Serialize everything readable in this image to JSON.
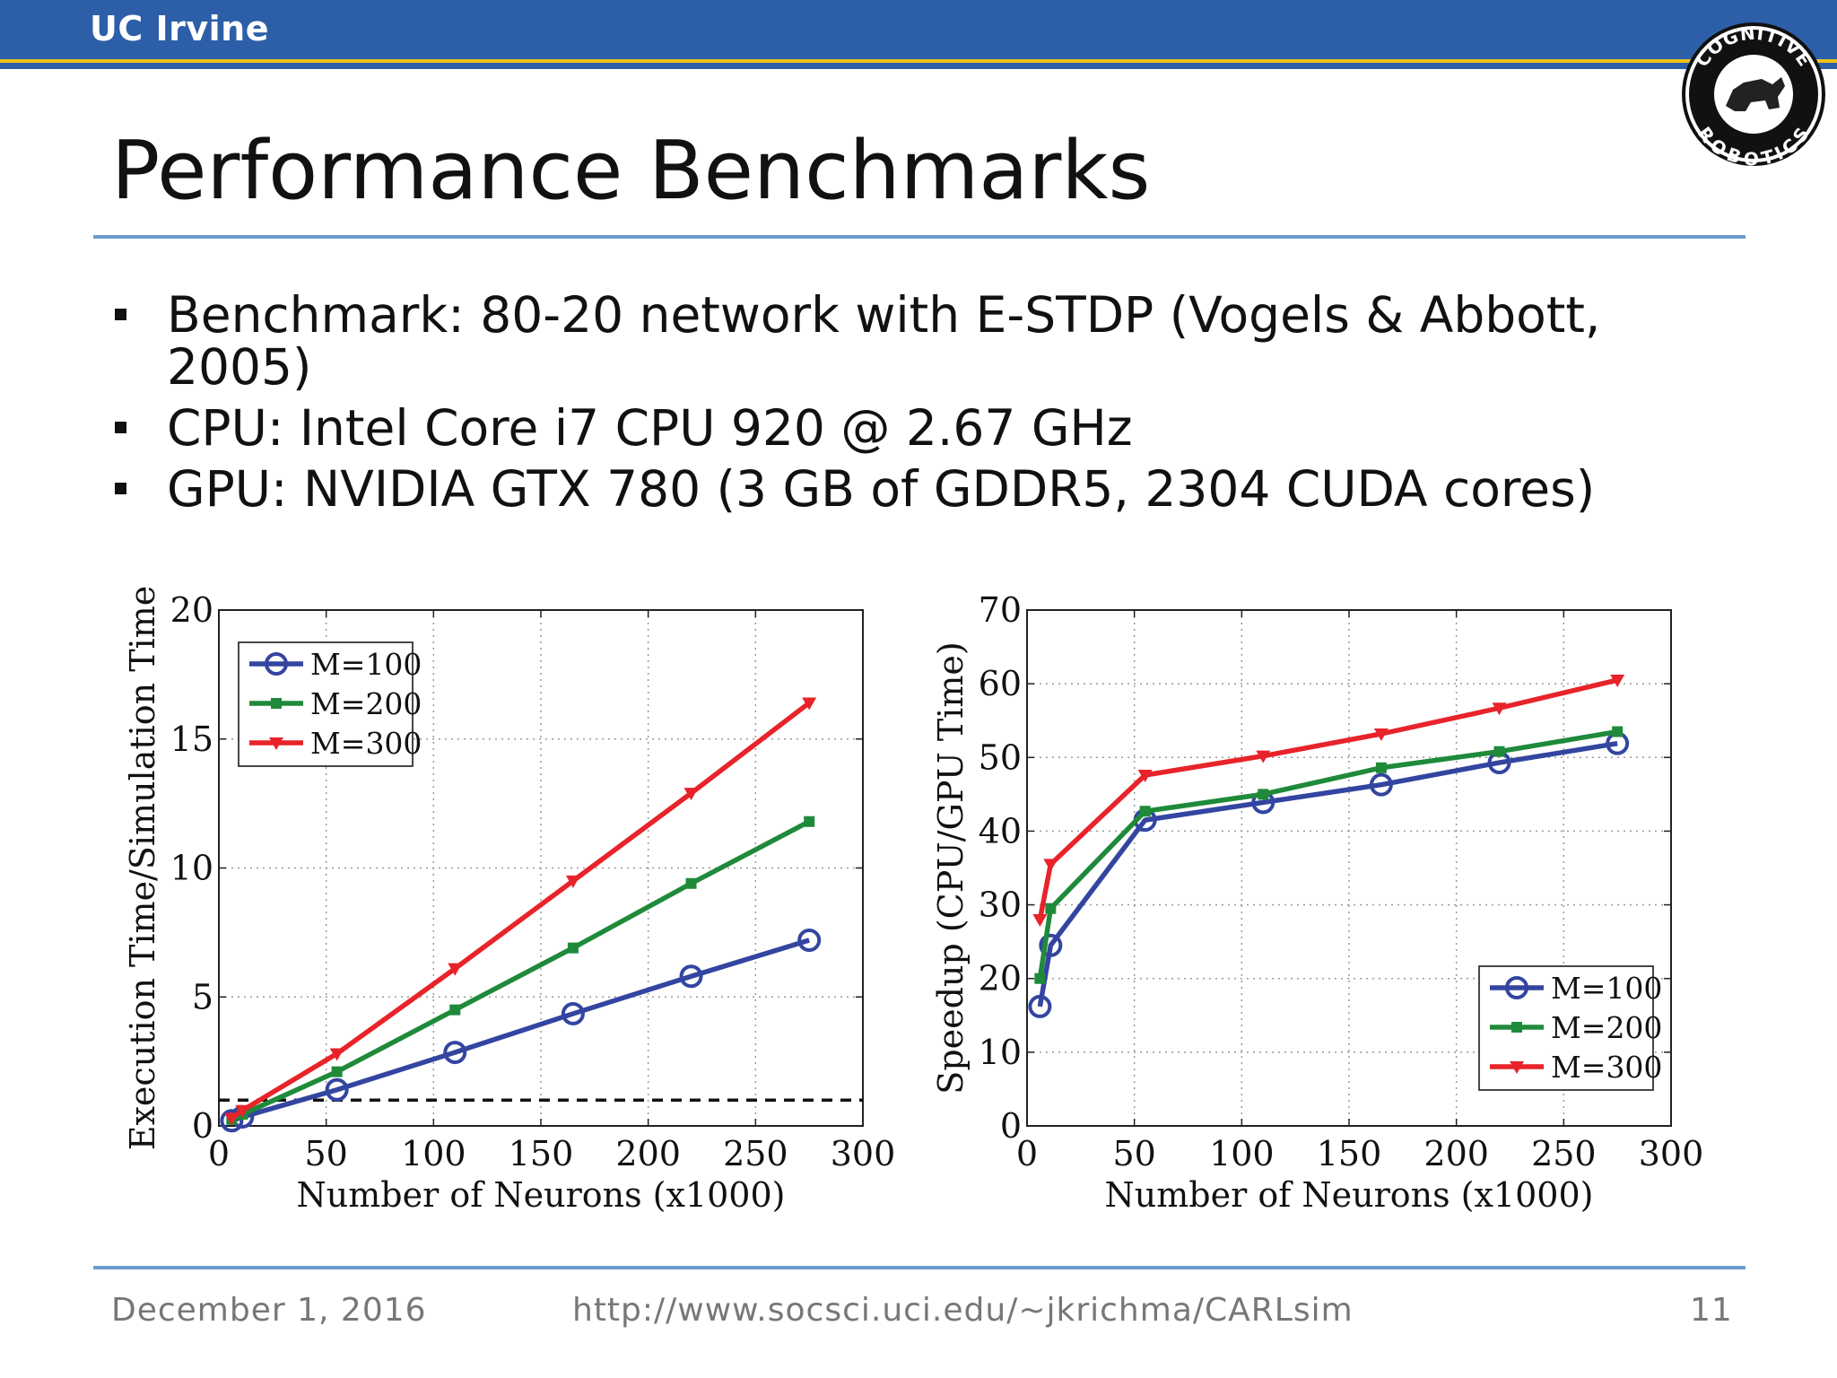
{
  "header": {
    "brand": "UC Irvine",
    "logo_top": "COGNITIVE",
    "logo_bottom": "ROBOTICS"
  },
  "slide": {
    "title": "Performance Benchmarks",
    "bullets": [
      "Benchmark: 80-20 network with E-STDP (Vogels & Abbott, 2005)",
      "CPU: Intel Core i7 CPU 920 @ 2.67 GHz",
      "GPU: NVIDIA GTX 780 (3 GB of GDDR5, 2304 CUDA cores)"
    ]
  },
  "footer": {
    "date": "December 1, 2016",
    "url": "http://www.socsci.uci.edu/~jkrichma/CARLsim",
    "page": "11"
  },
  "colors": {
    "m100": "#3345a0",
    "m200": "#1f8a3a",
    "m300": "#e8232a",
    "header": "#2d5fa8",
    "accent": "#f2c218"
  },
  "chart_data": [
    {
      "type": "line",
      "xlabel": "Number of Neurons  (x1000)",
      "ylabel": "Execution Time/Simulation Time",
      "xlim": [
        0,
        300
      ],
      "ylim": [
        0,
        20
      ],
      "xticks": [
        0,
        50,
        100,
        150,
        200,
        250,
        300
      ],
      "yticks": [
        0,
        5,
        10,
        15,
        20
      ],
      "grid": true,
      "legend": "top-left",
      "reference_line": {
        "y": 1,
        "style": "dashed"
      },
      "series": [
        {
          "name": "M=100",
          "marker": "circle",
          "x": [
            6,
            11,
            55,
            110,
            165,
            220,
            275
          ],
          "y": [
            0.2,
            0.35,
            1.4,
            2.85,
            4.35,
            5.8,
            7.2
          ]
        },
        {
          "name": "M=200",
          "marker": "square",
          "x": [
            6,
            11,
            55,
            110,
            165,
            220,
            275
          ],
          "y": [
            0.25,
            0.45,
            2.1,
            4.5,
            6.9,
            9.4,
            11.8
          ]
        },
        {
          "name": "M=300",
          "marker": "triangle-down",
          "x": [
            6,
            11,
            55,
            110,
            165,
            220,
            275
          ],
          "y": [
            0.3,
            0.6,
            2.8,
            6.1,
            9.5,
            12.9,
            16.4
          ]
        }
      ]
    },
    {
      "type": "line",
      "xlabel": "Number of Neurons  (x1000)",
      "ylabel": "Speedup (CPU/GPU Time)",
      "xlim": [
        0,
        300
      ],
      "ylim": [
        0,
        70
      ],
      "xticks": [
        0,
        50,
        100,
        150,
        200,
        250,
        300
      ],
      "yticks": [
        0,
        10,
        20,
        30,
        40,
        50,
        60,
        70
      ],
      "grid": true,
      "legend": "bottom-right",
      "series": [
        {
          "name": "M=100",
          "marker": "circle",
          "x": [
            6,
            11,
            55,
            110,
            165,
            220,
            275
          ],
          "y": [
            16.2,
            24.5,
            41.5,
            43.9,
            46.3,
            49.3,
            51.9
          ]
        },
        {
          "name": "M=200",
          "marker": "square",
          "x": [
            6,
            11,
            55,
            110,
            165,
            220,
            275
          ],
          "y": [
            20,
            29.5,
            42.7,
            45,
            48.6,
            50.8,
            53.5
          ]
        },
        {
          "name": "M=300",
          "marker": "triangle-down",
          "x": [
            6,
            11,
            55,
            110,
            165,
            220,
            275
          ],
          "y": [
            28,
            35.5,
            47.6,
            50.2,
            53.2,
            56.7,
            60.5
          ]
        }
      ]
    }
  ]
}
